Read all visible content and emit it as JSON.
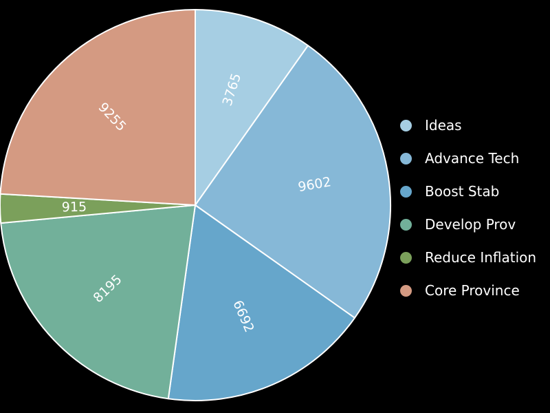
{
  "chart_data": {
    "type": "pie",
    "title": "",
    "categories": [
      "Ideas",
      "Advance Tech",
      "Boost Stab",
      "Develop Prov",
      "Reduce Inflation",
      "Core Province"
    ],
    "values": [
      3765,
      9602,
      6692,
      8195,
      915,
      9255
    ],
    "colors": [
      "#a6cee3",
      "#86b8d7",
      "#66a6cb",
      "#72b09a",
      "#7ba05b",
      "#d49a82"
    ],
    "label_color": "#ffffff",
    "slice_border_color": "#ffffff",
    "start_angle": "12 o'clock",
    "direction": "clockwise",
    "legend_position": "right"
  }
}
